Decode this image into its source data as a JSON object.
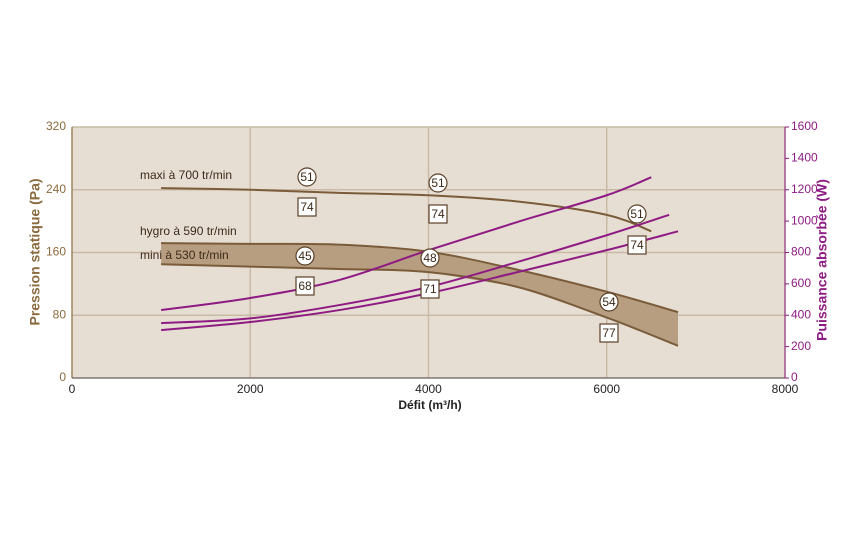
{
  "chart_data": {
    "type": "line",
    "xlabel": "Défit (m³/h)",
    "ylabel": "Pression statique (Pa)",
    "y2label": "Puissance absorbée (W)",
    "xlim": [
      0,
      8000
    ],
    "xticks": [
      0,
      2000,
      4000,
      6000,
      8000
    ],
    "ylim": [
      0,
      320
    ],
    "yticks": [
      0,
      80,
      160,
      240,
      320
    ],
    "y2lim": [
      0,
      1600
    ],
    "y2ticks": [
      0,
      200,
      400,
      600,
      800,
      1000,
      1200,
      1400,
      1600
    ],
    "grid": true,
    "fill_between": [
      1,
      2
    ],
    "fill_color": "#b79e80",
    "series": [
      {
        "name": "maxi à 700 tr/min",
        "color": "#7a5c3a",
        "x": [
          1000,
          2000,
          3000,
          4000,
          5000,
          6000,
          6500
        ],
        "values": [
          242,
          240,
          236,
          233,
          225,
          208,
          187
        ]
      },
      {
        "name": "hygro à 590 tr/min",
        "color": "#7a5c3a",
        "x": [
          1000,
          2000,
          3000,
          4000,
          5000,
          6000,
          6800
        ],
        "values": [
          172,
          171,
          170,
          161,
          138,
          110,
          84
        ]
      },
      {
        "name": "mini à 530 tr/min",
        "color": "#7a5c3a",
        "x": [
          1000,
          2000,
          3000,
          4000,
          5000,
          6000,
          6800
        ],
        "values": [
          145,
          142,
          139,
          135,
          116,
          77,
          41
        ]
      },
      {
        "color": "#8e1b83",
        "axis": "y2",
        "x": [
          1000,
          2000,
          3000,
          4000,
          5000,
          6000,
          6500
        ],
        "values": [
          433,
          510,
          625,
          815,
          995,
          1165,
          1280
        ]
      },
      {
        "color": "#8e1b83",
        "axis": "y2",
        "x": [
          1000,
          2000,
          3000,
          4000,
          5000,
          6000,
          6700
        ],
        "values": [
          350,
          380,
          465,
          580,
          740,
          910,
          1040
        ]
      },
      {
        "color": "#8e1b83",
        "axis": "y2",
        "x": [
          1000,
          2000,
          3000,
          4000,
          5000,
          6000,
          6800
        ],
        "values": [
          305,
          357,
          433,
          540,
          675,
          815,
          935
        ]
      }
    ],
    "annotations": [
      {
        "text": "51",
        "shape": "circle"
      },
      {
        "text": "74",
        "shape": "box"
      },
      {
        "text": "51",
        "shape": "circle"
      },
      {
        "text": "74",
        "shape": "box"
      },
      {
        "text": "51",
        "shape": "circle"
      },
      {
        "text": "74",
        "shape": "box"
      },
      {
        "text": "45",
        "shape": "circle"
      },
      {
        "text": "68",
        "shape": "box"
      },
      {
        "text": "48",
        "shape": "circle"
      },
      {
        "text": "71",
        "shape": "box"
      },
      {
        "text": "54",
        "shape": "circle"
      },
      {
        "text": "77",
        "shape": "box"
      }
    ]
  }
}
